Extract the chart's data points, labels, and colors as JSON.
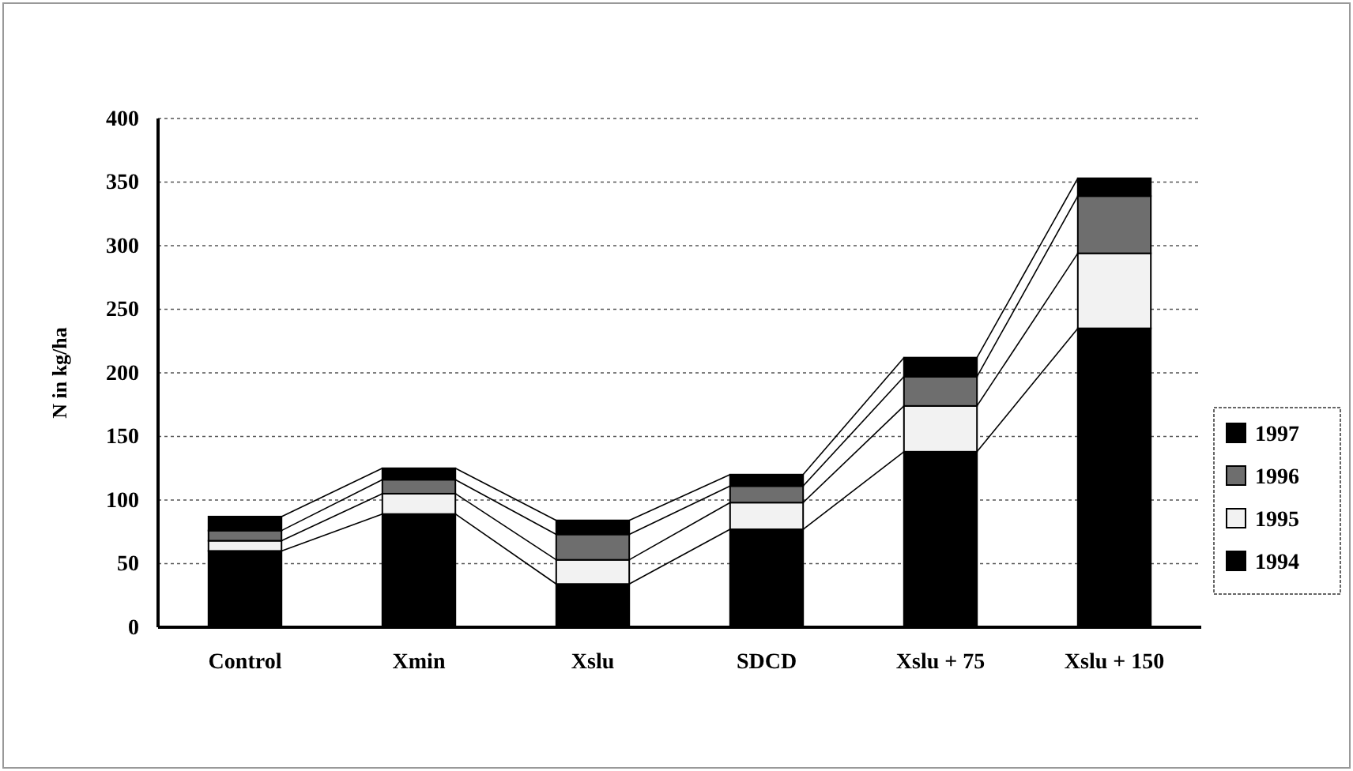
{
  "chart_data": {
    "type": "bar",
    "stacked": true,
    "ylabel": "N in kg/ha",
    "categories": [
      "Control",
      "Xmin",
      "Xslu",
      "SDCD",
      "Xslu + 75",
      "Xslu + 150"
    ],
    "series": [
      {
        "name": "1994",
        "color": "#000000",
        "values": [
          60,
          89,
          34,
          77,
          138,
          235
        ]
      },
      {
        "name": "1995",
        "color": "#f2f2f2",
        "values": [
          8,
          16,
          19,
          21,
          36,
          59
        ]
      },
      {
        "name": "1996",
        "color": "#6e6e6e",
        "values": [
          8,
          11,
          20,
          13,
          23,
          45
        ]
      },
      {
        "name": "1997",
        "color": "#000000",
        "values": [
          11,
          9,
          11,
          9,
          15,
          14
        ]
      }
    ],
    "ylim": [
      0,
      400
    ],
    "yticks": [
      0,
      50,
      100,
      150,
      200,
      250,
      300,
      350,
      400
    ],
    "grid": "y",
    "legend": "right"
  }
}
